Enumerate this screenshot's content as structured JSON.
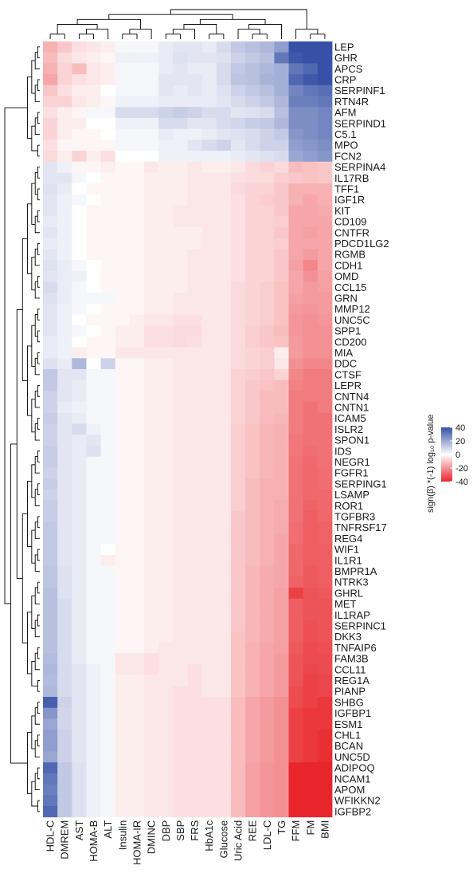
{
  "chart_data": {
    "type": "heatmap",
    "legend": {
      "title": "sign(β) *(-1) log₁₀ p-value",
      "ticks": [
        40,
        20,
        0,
        -20,
        -40
      ],
      "range": [
        -40,
        40
      ],
      "colors": {
        "neg": "#e8252b",
        "zero": "#ffffff",
        "pos": "#3651a6"
      },
      "placement": "right"
    },
    "columns": [
      "HDL-C",
      "DMREM",
      "AST",
      "HOMA-B",
      "ALT",
      "Insulin",
      "HOMA-IR",
      "DMINC",
      "DBP",
      "SBP",
      "FRS",
      "HbA1c",
      "Glucose",
      "Uric Acid",
      "REE",
      "LDL-C",
      "TG",
      "FFM",
      "FM",
      "BMI"
    ],
    "rows": [
      "LEP",
      "GHR",
      "APCS",
      "CRP",
      "SERPINF1",
      "RTN4R",
      "AFM",
      "SERPIND1",
      "C5.1",
      "MPO",
      "FCN2",
      "SERPINA4",
      "IL17RB",
      "TFF1",
      "IGF1R",
      "KIT",
      "CD109",
      "CNTFR",
      "PDCD1LG2",
      "RGMB",
      "CDH1",
      "OMD",
      "CCL15",
      "GRN",
      "MMP12",
      "UNC5C",
      "SPP1",
      "CD200",
      "MIA",
      "DDC",
      "CTSF",
      "LEPR",
      "CNTN4",
      "CNTN1",
      "ICAM5",
      "ISLR2",
      "SPON1",
      "IDS",
      "NEGR1",
      "FGFR1",
      "SERPING1",
      "LSAMP",
      "ROR1",
      "TGFBR3",
      "TNFRSF17",
      "REG4",
      "WIF1",
      "IL1R1",
      "BMPR1A",
      "NTRK3",
      "GHRL",
      "MET",
      "IL1RAP",
      "SERPINC1",
      "DKK3",
      "TNFAIP6",
      "FAM3B",
      "CCL11",
      "REG1A",
      "PIANP",
      "SHBG",
      "IGFBP1",
      "ESM1",
      "CHL1",
      "BCAN",
      "UNC5D",
      "ADIPOQ",
      "NCAM1",
      "APOM",
      "WFIKKN2",
      "IGFBP2"
    ],
    "values": [
      [
        -12,
        -8,
        -4,
        -3,
        -2,
        1,
        1,
        1,
        3,
        4,
        4,
        3,
        6,
        10,
        12,
        14,
        20,
        40,
        40,
        40
      ],
      [
        -10,
        -5,
        -3,
        -2,
        -1,
        2,
        2,
        2,
        3,
        5,
        4,
        4,
        5,
        8,
        10,
        12,
        30,
        38,
        40,
        40
      ],
      [
        -12,
        -6,
        -10,
        -3,
        -2,
        1,
        1,
        1,
        3,
        4,
        3,
        3,
        6,
        10,
        12,
        14,
        16,
        30,
        34,
        40
      ],
      [
        -14,
        -6,
        -4,
        -3,
        -2,
        1,
        1,
        1,
        4,
        4,
        4,
        3,
        6,
        11,
        12,
        15,
        16,
        34,
        38,
        40
      ],
      [
        -8,
        -4,
        -2,
        -2,
        0,
        1,
        1,
        1,
        4,
        3,
        4,
        3,
        5,
        8,
        10,
        12,
        16,
        26,
        30,
        32
      ],
      [
        -6,
        -6,
        -3,
        -2,
        -1,
        2,
        2,
        2,
        3,
        3,
        3,
        3,
        4,
        6,
        8,
        10,
        14,
        28,
        28,
        30
      ],
      [
        -4,
        -2,
        -1,
        1,
        1,
        6,
        6,
        6,
        8,
        9,
        8,
        6,
        6,
        4,
        5,
        6,
        12,
        24,
        24,
        26
      ],
      [
        -6,
        -2,
        -2,
        0,
        0,
        2,
        2,
        2,
        6,
        6,
        4,
        4,
        6,
        7,
        9,
        10,
        14,
        24,
        24,
        26
      ],
      [
        -6,
        -2,
        -1,
        -1,
        0,
        1,
        1,
        1,
        3,
        2,
        2,
        3,
        4,
        5,
        6,
        8,
        10,
        22,
        24,
        26
      ],
      [
        -4,
        -1,
        -1,
        -1,
        -1,
        1,
        1,
        1,
        2,
        2,
        4,
        6,
        8,
        4,
        6,
        8,
        8,
        20,
        22,
        24
      ],
      [
        -5,
        -2,
        -6,
        -2,
        -4,
        0,
        0,
        0,
        2,
        2,
        2,
        2,
        2,
        3,
        4,
        5,
        6,
        18,
        20,
        22
      ],
      [
        4,
        2,
        -1,
        -1,
        -2,
        -1,
        -1,
        -3,
        -2,
        -2,
        -3,
        -2,
        -2,
        -3,
        -5,
        -6,
        -5,
        -10,
        -9,
        -8
      ],
      [
        4,
        4,
        1,
        0,
        -1,
        -1,
        -1,
        -2,
        -2,
        -2,
        -3,
        -3,
        -3,
        -4,
        -5,
        -5,
        -7,
        -8,
        -9,
        -8
      ],
      [
        5,
        3,
        0,
        -1,
        -1,
        -1,
        -1,
        -2,
        -2,
        -2,
        -3,
        -3,
        -3,
        -5,
        -6,
        -6,
        -8,
        -12,
        -12,
        -12
      ],
      [
        4,
        2,
        1,
        0,
        -1,
        -1,
        -1,
        -2,
        -2,
        -2,
        -3,
        -3,
        -3,
        -4,
        -6,
        -7,
        -8,
        -12,
        -14,
        -12
      ],
      [
        4,
        2,
        0,
        -1,
        -1,
        -1,
        -1,
        -2,
        -2,
        -3,
        -3,
        -3,
        -3,
        -4,
        -6,
        -6,
        -8,
        -14,
        -14,
        -13
      ],
      [
        3,
        2,
        0,
        -1,
        -1,
        -1,
        -1,
        -2,
        -2,
        -3,
        -3,
        -3,
        -3,
        -4,
        -6,
        -6,
        -7,
        -14,
        -14,
        -14
      ],
      [
        4,
        2,
        0,
        -1,
        -1,
        -1,
        -1,
        -2,
        -2,
        -2,
        -2,
        -3,
        -3,
        -4,
        -6,
        -6,
        -8,
        -14,
        -15,
        -14
      ],
      [
        3,
        2,
        0,
        -1,
        -1,
        -1,
        -1,
        -2,
        -2,
        -2,
        -2,
        -3,
        -3,
        -4,
        -6,
        -6,
        -7,
        -14,
        -14,
        -14
      ],
      [
        4,
        2,
        0,
        -1,
        -1,
        -1,
        -1,
        -2,
        -2,
        -2,
        -3,
        -3,
        -3,
        -4,
        -6,
        -6,
        -8,
        -14,
        -16,
        -14
      ],
      [
        5,
        3,
        1,
        0,
        -1,
        -1,
        -1,
        -2,
        -2,
        -2,
        -3,
        -3,
        -3,
        -4,
        -6,
        -6,
        -8,
        -15,
        -20,
        -14
      ],
      [
        4,
        3,
        2,
        0,
        -1,
        -1,
        -1,
        -2,
        -2,
        -2,
        -3,
        -3,
        -3,
        -4,
        -6,
        -6,
        -8,
        -14,
        -18,
        -15
      ],
      [
        6,
        3,
        1,
        0,
        -1,
        -1,
        -1,
        -2,
        -2,
        -2,
        -3,
        -3,
        -3,
        -5,
        -6,
        -7,
        -9,
        -14,
        -16,
        -15
      ],
      [
        5,
        3,
        1,
        1,
        1,
        -1,
        -1,
        -2,
        -2,
        -3,
        -3,
        -3,
        -3,
        -5,
        -6,
        -7,
        -9,
        -15,
        -16,
        -16
      ],
      [
        4,
        2,
        1,
        0,
        -1,
        -1,
        -1,
        -2,
        -2,
        -3,
        -3,
        -3,
        -3,
        -5,
        -6,
        -7,
        -9,
        -16,
        -17,
        -16
      ],
      [
        4,
        2,
        0,
        -1,
        -1,
        -1,
        -2,
        -3,
        -3,
        -4,
        -4,
        -3,
        -3,
        -5,
        -6,
        -7,
        -9,
        -17,
        -18,
        -17
      ],
      [
        4,
        2,
        1,
        0,
        -1,
        -2,
        -2,
        -4,
        -4,
        -5,
        -5,
        -3,
        -3,
        -5,
        -7,
        -8,
        -10,
        -17,
        -18,
        -18
      ],
      [
        3,
        2,
        0,
        -1,
        -1,
        -2,
        -2,
        -4,
        -4,
        -5,
        -4,
        -3,
        -3,
        -5,
        -7,
        -8,
        -9,
        -16,
        -18,
        -18
      ],
      [
        3,
        2,
        -2,
        -1,
        -1,
        -3,
        -3,
        -3,
        -3,
        -3,
        -3,
        -3,
        -3,
        -5,
        -6,
        -7,
        -2,
        -16,
        -18,
        -18
      ],
      [
        5,
        3,
        14,
        0,
        8,
        -1,
        -1,
        -2,
        -2,
        -3,
        -3,
        -3,
        -3,
        -5,
        -6,
        -7,
        -3,
        -18,
        -20,
        -20
      ],
      [
        10,
        4,
        4,
        1,
        1,
        -1,
        -1,
        -2,
        -2,
        -3,
        -3,
        -3,
        -3,
        -6,
        -7,
        -8,
        -6,
        -20,
        -22,
        -22
      ],
      [
        10,
        4,
        3,
        1,
        1,
        -1,
        -1,
        -2,
        -2,
        -3,
        -3,
        -3,
        -3,
        -6,
        -8,
        -9,
        -10,
        -21,
        -22,
        -22
      ],
      [
        8,
        4,
        3,
        1,
        1,
        -1,
        -1,
        -2,
        -2,
        -3,
        -3,
        -3,
        -3,
        -6,
        -8,
        -10,
        -10,
        -22,
        -22,
        -22
      ],
      [
        8,
        3,
        2,
        1,
        1,
        -1,
        -1,
        -2,
        -2,
        -3,
        -3,
        -3,
        -3,
        -6,
        -8,
        -10,
        -10,
        -22,
        -24,
        -22
      ],
      [
        9,
        4,
        3,
        1,
        1,
        -1,
        -1,
        -2,
        -2,
        -3,
        -3,
        -3,
        -3,
        -6,
        -8,
        -10,
        -11,
        -22,
        -24,
        -24
      ],
      [
        8,
        4,
        6,
        2,
        1,
        -1,
        -1,
        -2,
        -2,
        -3,
        -3,
        -3,
        -3,
        -7,
        -9,
        -11,
        -12,
        -22,
        -24,
        -24
      ],
      [
        8,
        4,
        3,
        4,
        1,
        -1,
        -1,
        -2,
        -2,
        -3,
        -3,
        -3,
        -3,
        -7,
        -9,
        -11,
        -12,
        -23,
        -24,
        -24
      ],
      [
        9,
        4,
        3,
        5,
        1,
        -1,
        -1,
        -2,
        -2,
        -3,
        -3,
        -3,
        -3,
        -7,
        -9,
        -11,
        -12,
        -23,
        -25,
        -24
      ],
      [
        9,
        4,
        3,
        1,
        1,
        -1,
        -1,
        -2,
        -2,
        -3,
        -3,
        -3,
        -3,
        -7,
        -9,
        -11,
        -12,
        -24,
        -26,
        -24
      ],
      [
        8,
        4,
        3,
        1,
        1,
        -1,
        -1,
        -2,
        -2,
        -3,
        -3,
        -3,
        -3,
        -7,
        -9,
        -11,
        -12,
        -24,
        -26,
        -25
      ],
      [
        9,
        4,
        3,
        1,
        1,
        -1,
        -1,
        -2,
        -2,
        -3,
        -3,
        -3,
        -3,
        -7,
        -10,
        -12,
        -12,
        -24,
        -26,
        -25
      ],
      [
        8,
        4,
        3,
        1,
        1,
        -1,
        -1,
        -2,
        -2,
        -3,
        -3,
        -3,
        -3,
        -7,
        -10,
        -12,
        -12,
        -24,
        -26,
        -26
      ],
      [
        9,
        4,
        3,
        1,
        1,
        -1,
        -1,
        -2,
        -2,
        -3,
        -3,
        -3,
        -3,
        -7,
        -10,
        -12,
        -13,
        -24,
        -27,
        -26
      ],
      [
        9,
        4,
        3,
        1,
        1,
        -1,
        -1,
        -2,
        -2,
        -3,
        -3,
        -3,
        -3,
        -8,
        -10,
        -12,
        -13,
        -24,
        -28,
        -26
      ],
      [
        10,
        4,
        3,
        1,
        1,
        -1,
        -1,
        -2,
        -2,
        -3,
        -3,
        -3,
        -3,
        -8,
        -10,
        -12,
        -13,
        -25,
        -28,
        -27
      ],
      [
        10,
        4,
        3,
        1,
        1,
        -1,
        -1,
        -2,
        -2,
        -3,
        -3,
        -3,
        -3,
        -8,
        -10,
        -12,
        -14,
        -25,
        -28,
        -27
      ],
      [
        10,
        4,
        3,
        1,
        0,
        -1,
        -1,
        -2,
        -2,
        -3,
        -3,
        -3,
        -3,
        -8,
        -10,
        -12,
        -14,
        -26,
        -28,
        -28
      ],
      [
        10,
        4,
        3,
        1,
        -2,
        -1,
        -1,
        -2,
        -2,
        -3,
        -3,
        -3,
        -3,
        -8,
        -10,
        -12,
        -14,
        -26,
        -28,
        -28
      ],
      [
        11,
        5,
        3,
        1,
        1,
        -1,
        -1,
        -2,
        -2,
        -3,
        -3,
        -3,
        -3,
        -8,
        -11,
        -13,
        -14,
        -26,
        -29,
        -28
      ],
      [
        11,
        5,
        3,
        1,
        1,
        -1,
        -1,
        -2,
        -2,
        -3,
        -3,
        -3,
        -3,
        -8,
        -11,
        -13,
        -14,
        -27,
        -29,
        -28
      ],
      [
        12,
        5,
        3,
        1,
        1,
        -1,
        -1,
        -2,
        -2,
        -3,
        -3,
        -3,
        -3,
        -8,
        -11,
        -13,
        -15,
        -34,
        -30,
        -29
      ],
      [
        12,
        6,
        3,
        1,
        1,
        -1,
        -1,
        -2,
        -2,
        -3,
        -3,
        -3,
        -3,
        -8,
        -11,
        -13,
        -15,
        -28,
        -30,
        -30
      ],
      [
        12,
        6,
        3,
        1,
        1,
        -1,
        -1,
        -2,
        -2,
        -3,
        -3,
        -3,
        -3,
        -8,
        -11,
        -13,
        -15,
        -28,
        -30,
        -30
      ],
      [
        12,
        6,
        3,
        1,
        1,
        -1,
        -1,
        -2,
        -2,
        -3,
        -3,
        -3,
        -3,
        -8,
        -11,
        -13,
        -15,
        -28,
        -31,
        -30
      ],
      [
        12,
        6,
        3,
        1,
        1,
        -1,
        -1,
        -2,
        -2,
        -3,
        -3,
        -3,
        -3,
        -9,
        -11,
        -13,
        -15,
        -28,
        -31,
        -30
      ],
      [
        12,
        6,
        3,
        1,
        1,
        -1,
        -1,
        -2,
        -3,
        -3,
        -3,
        -3,
        -3,
        -9,
        -12,
        -14,
        -15,
        -29,
        -32,
        -31
      ],
      [
        13,
        6,
        3,
        1,
        1,
        -3,
        -3,
        -4,
        -3,
        -3,
        -3,
        -3,
        -3,
        -9,
        -12,
        -14,
        -16,
        -30,
        -32,
        -32
      ],
      [
        14,
        6,
        4,
        2,
        1,
        -3,
        -3,
        -4,
        -3,
        -3,
        -4,
        -3,
        -3,
        -9,
        -12,
        -14,
        -16,
        -30,
        -33,
        -32
      ],
      [
        13,
        6,
        4,
        2,
        1,
        -2,
        -2,
        -3,
        -3,
        -3,
        -4,
        -3,
        -3,
        -9,
        -12,
        -14,
        -16,
        -30,
        -34,
        -33
      ],
      [
        14,
        6,
        4,
        2,
        1,
        -2,
        -2,
        -3,
        -3,
        -4,
        -4,
        -3,
        -3,
        -9,
        -12,
        -14,
        -16,
        -32,
        -34,
        -33
      ],
      [
        36,
        8,
        4,
        2,
        1,
        -2,
        -2,
        -3,
        -3,
        -4,
        -4,
        -4,
        -4,
        -10,
        -14,
        -16,
        -18,
        -32,
        -34,
        -36
      ],
      [
        22,
        7,
        4,
        2,
        1,
        -2,
        -2,
        -3,
        -3,
        -4,
        -4,
        -4,
        -4,
        -10,
        -14,
        -16,
        -18,
        -34,
        -36,
        -36
      ],
      [
        18,
        7,
        4,
        2,
        1,
        -2,
        -2,
        -3,
        -3,
        -4,
        -4,
        -4,
        -4,
        -10,
        -14,
        -16,
        -18,
        -34,
        -36,
        -36
      ],
      [
        20,
        8,
        4,
        2,
        1,
        -2,
        -2,
        -3,
        -3,
        -4,
        -4,
        -4,
        -4,
        -10,
        -14,
        -16,
        -18,
        -34,
        -36,
        -38
      ],
      [
        20,
        8,
        4,
        2,
        1,
        -2,
        -2,
        -3,
        -3,
        -4,
        -4,
        -4,
        -4,
        -10,
        -14,
        -16,
        -18,
        -34,
        -36,
        -38
      ],
      [
        18,
        8,
        4,
        2,
        1,
        -2,
        -2,
        -3,
        -3,
        -4,
        -4,
        -4,
        -4,
        -10,
        -14,
        -16,
        -18,
        -34,
        -36,
        -38
      ],
      [
        34,
        10,
        5,
        2,
        1,
        -2,
        -2,
        -3,
        -3,
        -4,
        -4,
        -4,
        -4,
        -10,
        -15,
        -17,
        -18,
        -40,
        -40,
        -40
      ],
      [
        30,
        10,
        5,
        2,
        1,
        -2,
        -2,
        -3,
        -3,
        -4,
        -4,
        -4,
        -4,
        -10,
        -15,
        -17,
        -18,
        -40,
        -40,
        -40
      ],
      [
        28,
        10,
        5,
        2,
        1,
        -2,
        -2,
        -3,
        -3,
        -4,
        -4,
        -4,
        -4,
        -10,
        -15,
        -17,
        -18,
        -40,
        -40,
        -40
      ],
      [
        30,
        10,
        5,
        2,
        1,
        -2,
        -2,
        -3,
        -3,
        -4,
        -4,
        -4,
        -4,
        -10,
        -15,
        -17,
        -18,
        -40,
        -40,
        -40
      ],
      [
        34,
        10,
        5,
        2,
        1,
        -2,
        -2,
        -3,
        -3,
        -4,
        -4,
        -4,
        -4,
        -10,
        -15,
        -17,
        -18,
        -40,
        -40,
        -40
      ]
    ]
  }
}
